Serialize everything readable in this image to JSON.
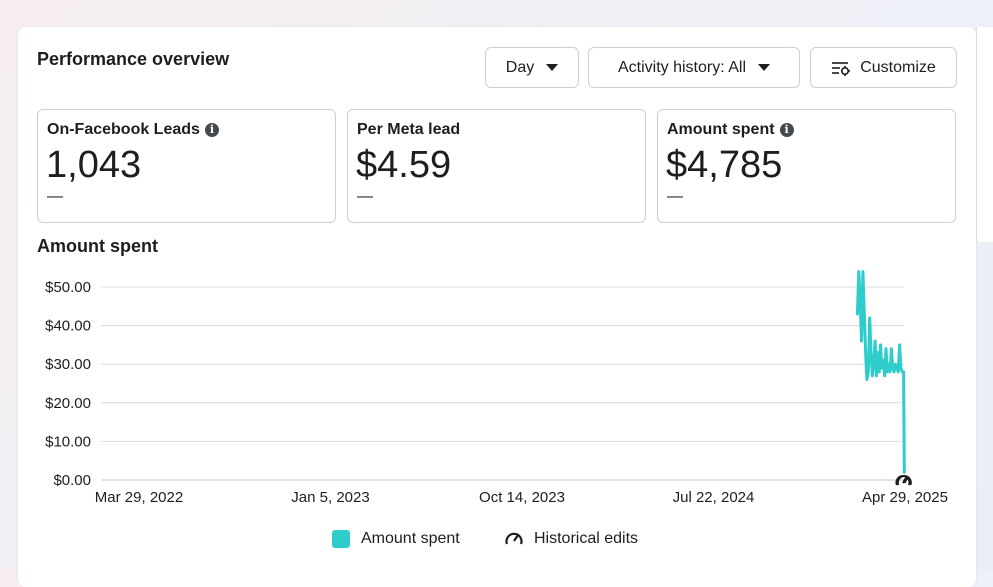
{
  "header": {
    "title": "Performance overview",
    "day_label": "Day",
    "activity_label": "Activity history: All",
    "customize_label": "Customize"
  },
  "metrics": [
    {
      "label": "On-Facebook Leads",
      "value": "1,043",
      "delta": "—",
      "info": true
    },
    {
      "label": "Per Meta lead",
      "value": "$4.59",
      "delta": "—",
      "info": false
    },
    {
      "label": "Amount spent",
      "value": "$4,785",
      "delta": "—",
      "info": true
    }
  ],
  "chart_section_title": "Amount spent",
  "legend": {
    "series_label": "Amount spent",
    "edits_label": "Historical edits"
  },
  "colors": {
    "series": "#2ecccb",
    "grid": "#dadde1"
  },
  "icons": {
    "dropdown": "caret-down-icon",
    "customize": "sliders-icon",
    "info": "info-icon",
    "historical_edits": "gauge-icon"
  },
  "chart_data": {
    "type": "line",
    "title": "Amount spent",
    "xlabel": "",
    "ylabel": "",
    "ylim": [
      0,
      50
    ],
    "y_ticks": [
      "$0.00",
      "$10.00",
      "$20.00",
      "$30.00",
      "$40.00",
      "$50.00"
    ],
    "x_ticks": [
      "Mar 29, 2022",
      "Jan 5, 2023",
      "Oct 14, 2023",
      "Jul 22, 2024",
      "Apr 29, 2025"
    ],
    "x_range": [
      "2022-03-29",
      "2025-04-29"
    ],
    "grid": true,
    "legend_position": "bottom",
    "series": [
      {
        "name": "Amount spent",
        "x": [
          "2025-02-18",
          "2025-02-20",
          "2025-02-22",
          "2025-02-24",
          "2025-02-26",
          "2025-02-28",
          "2025-03-02",
          "2025-03-04",
          "2025-03-06",
          "2025-03-08",
          "2025-03-10",
          "2025-03-12",
          "2025-03-14",
          "2025-03-16",
          "2025-03-18",
          "2025-03-20",
          "2025-03-22",
          "2025-03-24",
          "2025-03-26",
          "2025-03-28",
          "2025-03-30",
          "2025-04-01",
          "2025-04-03",
          "2025-04-05",
          "2025-04-07",
          "2025-04-09",
          "2025-04-11",
          "2025-04-13",
          "2025-04-15",
          "2025-04-17",
          "2025-04-19",
          "2025-04-21",
          "2025-04-23",
          "2025-04-25",
          "2025-04-27",
          "2025-04-28"
        ],
        "y": [
          43,
          54,
          47,
          36,
          54,
          44,
          33,
          26,
          28,
          42,
          33,
          27,
          30,
          36,
          27,
          33,
          28,
          35,
          29,
          31,
          27,
          34,
          28,
          30,
          28,
          34,
          29,
          28,
          30,
          29,
          28,
          35,
          29,
          28,
          28,
          2
        ]
      }
    ],
    "historical_edits": [
      "2025-04-26",
      "2025-04-28"
    ]
  }
}
